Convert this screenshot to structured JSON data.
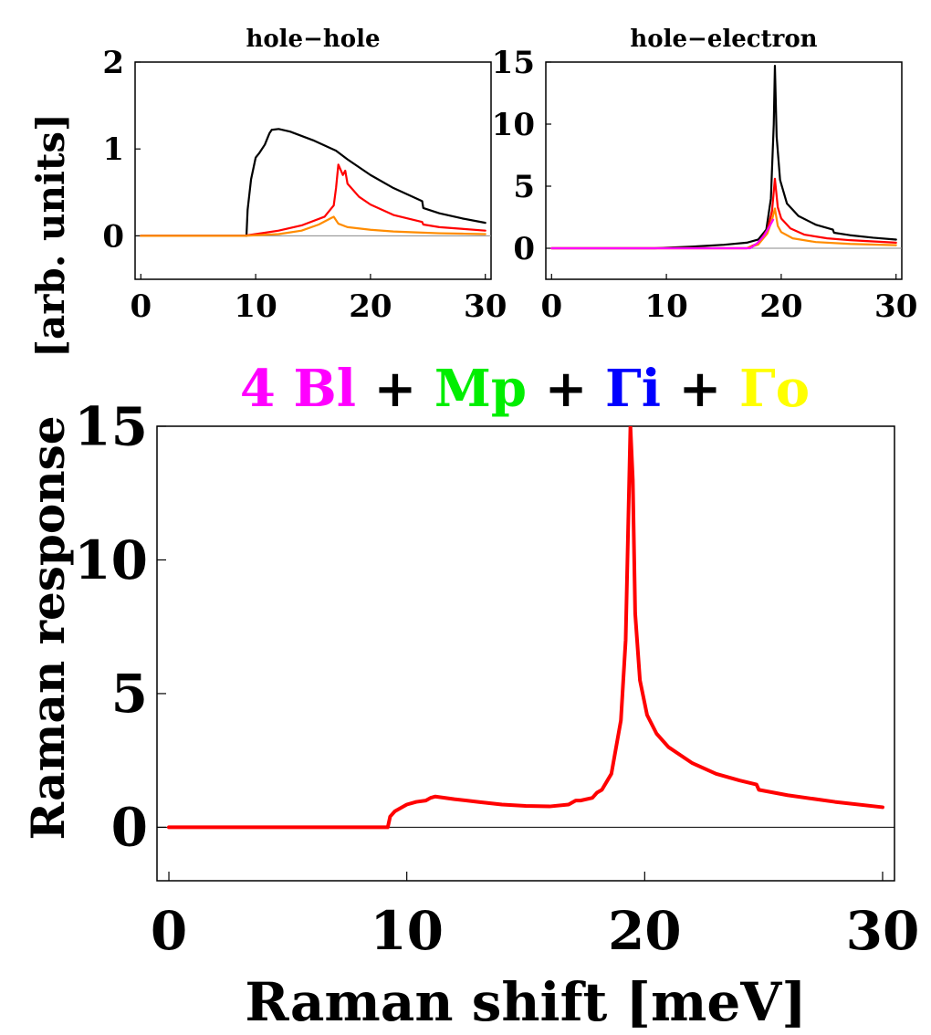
{
  "colors": {
    "black": "#000000",
    "red": "#ff0000",
    "orange": "#ff8c00",
    "magenta": "#ff00ff",
    "green": "#00ee00",
    "blue": "#0000ff",
    "yellow": "#ffff00",
    "zero_line": "#888888"
  },
  "shared_labels": {
    "top_ylabel": "[arb. units]",
    "bottom_ylabel": "Raman response",
    "xlabel": "Raman shift [meV]"
  },
  "legend": {
    "parts": [
      {
        "text": "4 Bl",
        "color": "#ff00ff"
      },
      {
        "text": " + ",
        "color": "#000000"
      },
      {
        "text": "Mp",
        "color": "#00ee00"
      },
      {
        "text": " + ",
        "color": "#000000"
      },
      {
        "text": "Γi",
        "color": "#0000ff"
      },
      {
        "text": " + ",
        "color": "#000000"
      },
      {
        "text": "Γo",
        "color": "#ffff00"
      }
    ]
  },
  "chart_data": [
    {
      "type": "line",
      "title": "hole−hole",
      "xlabel": "",
      "ylabel": "",
      "xlim": [
        -0.5,
        30.5
      ],
      "ylim": [
        -0.5,
        2
      ],
      "xticks": [
        "0",
        "10",
        "20",
        "30"
      ],
      "yticks": [
        "0",
        "1",
        "2"
      ],
      "series": [
        {
          "name": "black",
          "color": "#000000",
          "x": [
            0,
            9.2,
            9.3,
            9.6,
            10.0,
            10.3,
            10.8,
            11.2,
            11.4,
            12.0,
            13.0,
            15.0,
            17.0,
            18.0,
            20.0,
            22.0,
            24.5,
            24.6,
            26.0,
            28.0,
            30.0
          ],
          "y": [
            0,
            0,
            0.3,
            0.65,
            0.9,
            0.95,
            1.05,
            1.18,
            1.22,
            1.23,
            1.2,
            1.1,
            0.98,
            0.88,
            0.7,
            0.55,
            0.4,
            0.32,
            0.26,
            0.2,
            0.15
          ]
        },
        {
          "name": "red",
          "color": "#ff0000",
          "x": [
            0,
            9.0,
            10.0,
            12.0,
            14.0,
            16.0,
            16.8,
            17.0,
            17.2,
            17.6,
            17.8,
            18.0,
            19.0,
            20.0,
            22.0,
            24.5,
            24.6,
            26.0,
            28.0,
            30.0
          ],
          "y": [
            0,
            0,
            0.02,
            0.06,
            0.12,
            0.22,
            0.35,
            0.55,
            0.82,
            0.7,
            0.75,
            0.6,
            0.45,
            0.36,
            0.24,
            0.16,
            0.13,
            0.1,
            0.08,
            0.06
          ]
        },
        {
          "name": "orange",
          "color": "#ff8c00",
          "x": [
            0,
            9.0,
            12.0,
            14.0,
            15.5,
            16.5,
            16.8,
            17.2,
            18.0,
            20.0,
            22.0,
            24.0,
            26.0,
            28.0,
            30.0
          ],
          "y": [
            0,
            0,
            0.02,
            0.06,
            0.13,
            0.2,
            0.22,
            0.14,
            0.1,
            0.07,
            0.05,
            0.04,
            0.03,
            0.025,
            0.02
          ]
        }
      ]
    },
    {
      "type": "line",
      "title": "hole−electron",
      "xlabel": "",
      "ylabel": "",
      "xlim": [
        -0.5,
        30.5
      ],
      "ylim": [
        -2.5,
        15
      ],
      "xticks": [
        "0",
        "10",
        "20",
        "30"
      ],
      "yticks": [
        "0",
        "5",
        "10",
        "15"
      ],
      "series": [
        {
          "name": "black",
          "color": "#000000",
          "x": [
            0,
            9.0,
            12.0,
            15.0,
            17.0,
            18.0,
            18.7,
            19.1,
            19.35,
            19.45,
            19.6,
            19.9,
            20.5,
            21.5,
            23.0,
            24.5,
            24.6,
            26.0,
            28.0,
            30.0
          ],
          "y": [
            0,
            0,
            0.12,
            0.28,
            0.45,
            0.7,
            1.5,
            4.0,
            10.0,
            14.7,
            9.0,
            5.5,
            3.6,
            2.6,
            1.9,
            1.5,
            1.25,
            1.05,
            0.85,
            0.7
          ]
        },
        {
          "name": "red",
          "color": "#ff0000",
          "x": [
            0,
            17.0,
            18.0,
            18.8,
            19.2,
            19.45,
            19.7,
            20.0,
            20.8,
            22.0,
            24.0,
            26.0,
            28.0,
            30.0
          ],
          "y": [
            0,
            0,
            0.4,
            1.5,
            3.0,
            5.6,
            3.3,
            2.4,
            1.6,
            1.1,
            0.8,
            0.65,
            0.55,
            0.45
          ]
        },
        {
          "name": "orange",
          "color": "#ff8c00",
          "x": [
            0,
            17.0,
            18.0,
            18.8,
            19.2,
            19.45,
            19.7,
            20.0,
            21.0,
            23.0,
            26.0,
            30.0
          ],
          "y": [
            0,
            0,
            0.3,
            1.2,
            2.3,
            3.2,
            1.8,
            1.3,
            0.8,
            0.5,
            0.35,
            0.25
          ]
        },
        {
          "name": "magenta",
          "color": "#ff00ff",
          "x": [
            0,
            17.3,
            17.9,
            18.5,
            19.0,
            19.3
          ],
          "y": [
            0,
            0,
            0.4,
            1.0,
            1.8,
            2.3
          ]
        }
      ]
    },
    {
      "type": "line",
      "title": "",
      "xlabel": "Raman shift [meV]",
      "ylabel": "Raman response",
      "xlim": [
        -0.5,
        30.5
      ],
      "ylim": [
        -2,
        15
      ],
      "xticks": [
        "0",
        "10",
        "20",
        "30"
      ],
      "yticks": [
        "0",
        "5",
        "10",
        "15"
      ],
      "series": [
        {
          "name": "total",
          "color": "#ff0000",
          "x": [
            0,
            9.2,
            9.3,
            9.5,
            10.0,
            10.4,
            10.8,
            11.0,
            11.2,
            12.0,
            13.0,
            14.0,
            15.0,
            16.0,
            16.8,
            17.1,
            17.3,
            17.8,
            18.0,
            18.2,
            18.6,
            19.0,
            19.2,
            19.3,
            19.4,
            19.5,
            19.6,
            19.8,
            20.1,
            20.5,
            21.0,
            22.0,
            23.0,
            24.0,
            24.7,
            24.8,
            26.0,
            28.0,
            30.0
          ],
          "y": [
            0,
            0,
            0.4,
            0.6,
            0.85,
            0.95,
            1.0,
            1.1,
            1.15,
            1.05,
            0.95,
            0.85,
            0.8,
            0.78,
            0.85,
            1.0,
            1.0,
            1.1,
            1.3,
            1.4,
            2.0,
            4.0,
            7.0,
            11.0,
            15.0,
            13.0,
            8.0,
            5.5,
            4.2,
            3.5,
            3.0,
            2.4,
            2.0,
            1.75,
            1.6,
            1.4,
            1.2,
            0.95,
            0.75
          ]
        }
      ]
    }
  ]
}
